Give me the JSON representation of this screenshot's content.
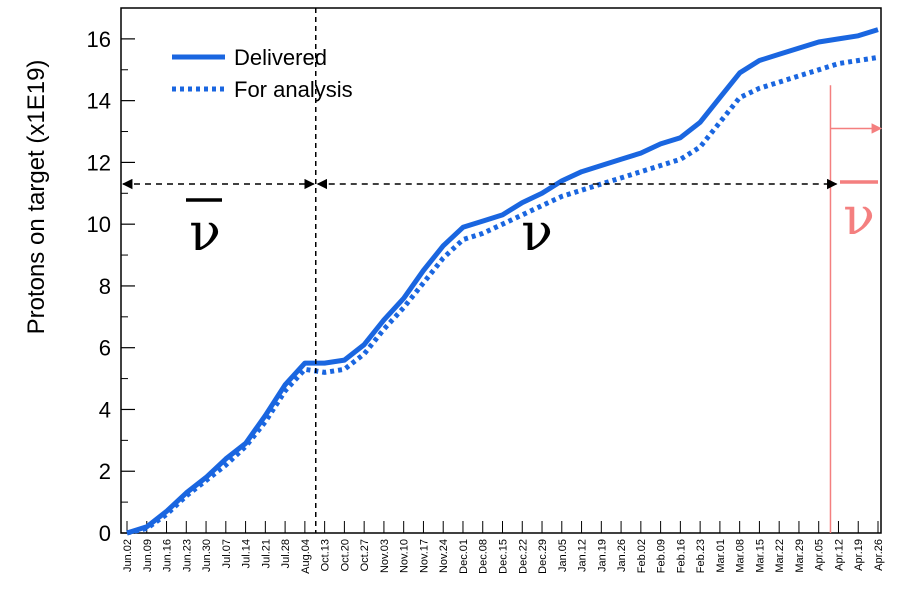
{
  "chart_data": {
    "type": "line",
    "ylabel": "Protons on target (x1E19)",
    "xlabel": "",
    "ylim": [
      0,
      17
    ],
    "y_ticks": [
      "0",
      "2",
      "4",
      "6",
      "8",
      "10",
      "12",
      "14",
      "16"
    ],
    "categories": [
      "Jun.02",
      "Jun.09",
      "Jun.16",
      "Jun.23",
      "Jun.30",
      "Jul.07",
      "Jul.14",
      "Jul.21",
      "Jul.28",
      "Aug.04",
      "Oct.13",
      "Oct.20",
      "Oct.27",
      "Nov.03",
      "Nov.10",
      "Nov.17",
      "Nov.24",
      "Dec.01",
      "Dec.08",
      "Dec.15",
      "Dec.22",
      "Dec.29",
      "Jan.05",
      "Jan.12",
      "Jan.19",
      "Jan.26",
      "Feb.02",
      "Feb.09",
      "Feb.16",
      "Feb.23",
      "Mar.01",
      "Mar.08",
      "Mar.15",
      "Mar.22",
      "Mar.29",
      "Apr.05",
      "Apr.12",
      "Apr.19",
      "Apr.26"
    ],
    "series": [
      {
        "name": "Delivered",
        "style": "solid",
        "color": "#1a66e0",
        "values": [
          0.0,
          0.2,
          0.7,
          1.3,
          1.8,
          2.4,
          2.9,
          3.8,
          4.8,
          5.5,
          5.5,
          5.6,
          6.1,
          6.9,
          7.6,
          8.5,
          9.3,
          9.9,
          10.1,
          10.3,
          10.7,
          11.0,
          11.4,
          11.7,
          11.9,
          12.1,
          12.3,
          12.6,
          12.8,
          13.3,
          14.1,
          14.9,
          15.3,
          15.5,
          15.7,
          15.9,
          16.0,
          16.1,
          16.3
        ]
      },
      {
        "name": "For analysis",
        "style": "dotted",
        "color": "#1a66e0",
        "values": [
          0.0,
          0.15,
          0.6,
          1.2,
          1.7,
          2.2,
          2.8,
          3.6,
          4.6,
          5.3,
          5.2,
          5.3,
          5.8,
          6.6,
          7.3,
          8.1,
          8.9,
          9.5,
          9.7,
          10.0,
          10.3,
          10.6,
          10.9,
          11.1,
          11.3,
          11.5,
          11.7,
          11.9,
          12.1,
          12.5,
          13.3,
          14.1,
          14.4,
          14.6,
          14.8,
          15.0,
          15.2,
          15.3,
          15.4
        ]
      }
    ],
    "legend": {
      "placement": "top-left"
    },
    "grid": false,
    "annotations": {
      "boundary_1_after": "Aug.04",
      "boundary_2_at": "Apr.12",
      "arrow_level": 11.3,
      "left_region_label": "ν̄",
      "middle_region_label": "ν",
      "right_region_label": "ν̄",
      "right_region_color": "#f47f7f",
      "main_color": "#000000"
    }
  }
}
